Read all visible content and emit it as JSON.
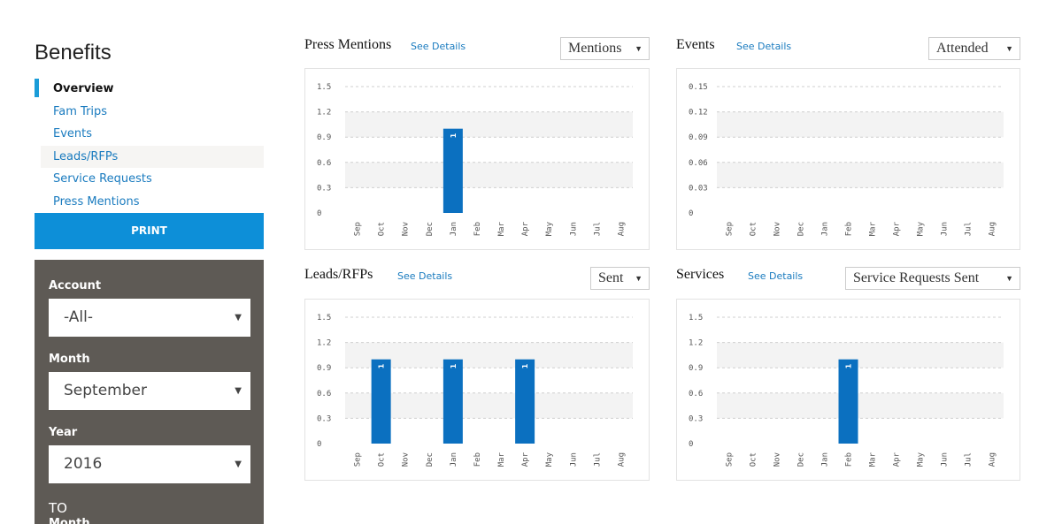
{
  "sidebar": {
    "title": "Benefits",
    "items": [
      {
        "label": "Overview",
        "active": true
      },
      {
        "label": "Fam Trips"
      },
      {
        "label": "Events"
      },
      {
        "label": "Leads/RFPs",
        "hover": true
      },
      {
        "label": "Service Requests"
      },
      {
        "label": "Press Mentions"
      }
    ],
    "print_label": "PRINT"
  },
  "filters": {
    "account_label": "Account",
    "account_value": "-All-",
    "month_label": "Month",
    "month_value": "September",
    "year_label": "Year",
    "year_value": "2016",
    "to_label": "TO",
    "month2_label": "Month"
  },
  "see_details_label": "See Details",
  "colors": {
    "bar": "#0b70c0",
    "accent": "#1a9cd8",
    "link": "#1a7bbf",
    "panel": "#5e5a55"
  },
  "months": [
    "Sep",
    "Oct",
    "Nov",
    "Dec",
    "Jan",
    "Feb",
    "Mar",
    "Apr",
    "May",
    "Jun",
    "Jul",
    "Aug"
  ],
  "charts": {
    "press": {
      "title": "Press Mentions",
      "select": "Mentions",
      "chart_data": {
        "type": "bar",
        "categories": [
          "Sep",
          "Oct",
          "Nov",
          "Dec",
          "Jan",
          "Feb",
          "Mar",
          "Apr",
          "May",
          "Jun",
          "Jul",
          "Aug"
        ],
        "values": [
          0,
          0,
          0,
          0,
          1,
          0,
          0,
          0,
          0,
          0,
          0,
          0
        ],
        "yticks": [
          "0",
          "0.3",
          "0.6",
          "0.9",
          "1.2",
          "1.5"
        ],
        "ylim": [
          0,
          1.5
        ]
      }
    },
    "events": {
      "title": "Events",
      "select": "Attended",
      "chart_data": {
        "type": "bar",
        "categories": [
          "Sep",
          "Oct",
          "Nov",
          "Dec",
          "Jan",
          "Feb",
          "Mar",
          "Apr",
          "May",
          "Jun",
          "Jul",
          "Aug"
        ],
        "values": [
          0,
          0,
          0,
          0,
          0,
          0,
          0,
          0,
          0,
          0,
          0,
          0
        ],
        "yticks": [
          "0",
          "0.03",
          "0.06",
          "0.09",
          "0.12",
          "0.15"
        ],
        "ylim": [
          0,
          0.15
        ]
      }
    },
    "leads": {
      "title": "Leads/RFPs",
      "select": "Sent",
      "chart_data": {
        "type": "bar",
        "categories": [
          "Sep",
          "Oct",
          "Nov",
          "Dec",
          "Jan",
          "Feb",
          "Mar",
          "Apr",
          "May",
          "Jun",
          "Jul",
          "Aug"
        ],
        "values": [
          0,
          1,
          0,
          0,
          1,
          0,
          0,
          1,
          0,
          0,
          0,
          0
        ],
        "yticks": [
          "0",
          "0.3",
          "0.6",
          "0.9",
          "1.2",
          "1.5"
        ],
        "ylim": [
          0,
          1.5
        ]
      }
    },
    "services": {
      "title": "Services",
      "select": "Service Requests Sent",
      "chart_data": {
        "type": "bar",
        "categories": [
          "Sep",
          "Oct",
          "Nov",
          "Dec",
          "Jan",
          "Feb",
          "Mar",
          "Apr",
          "May",
          "Jun",
          "Jul",
          "Aug"
        ],
        "values": [
          0,
          0,
          0,
          0,
          0,
          1,
          0,
          0,
          0,
          0,
          0,
          0
        ],
        "yticks": [
          "0",
          "0.3",
          "0.6",
          "0.9",
          "1.2",
          "1.5"
        ],
        "ylim": [
          0,
          1.5
        ]
      }
    }
  }
}
